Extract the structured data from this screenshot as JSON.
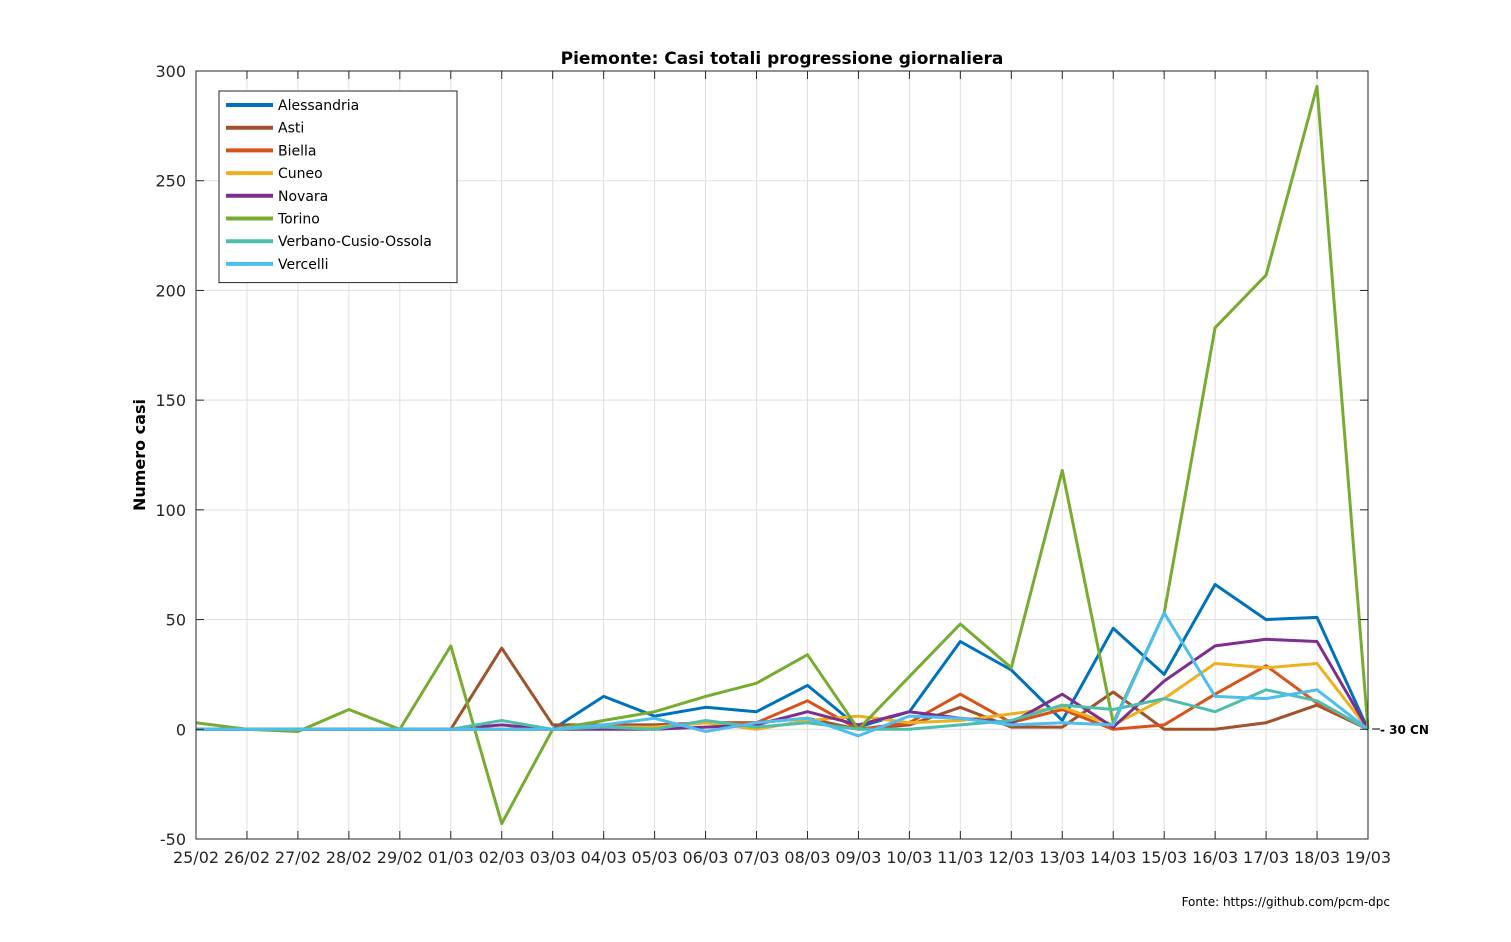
{
  "chart_data": {
    "type": "line",
    "title": "Piemonte: Casi totali progressione giornaliera",
    "xlabel": "",
    "ylabel": "Numero casi",
    "ylim": [
      -50,
      300
    ],
    "yticks": [
      -50,
      0,
      50,
      100,
      150,
      200,
      250,
      300
    ],
    "grid": true,
    "legend_position": "top-left",
    "categories": [
      "25/02",
      "26/02",
      "27/02",
      "28/02",
      "29/02",
      "01/03",
      "02/03",
      "03/03",
      "04/03",
      "05/03",
      "06/03",
      "07/03",
      "08/03",
      "09/03",
      "10/03",
      "11/03",
      "12/03",
      "13/03",
      "14/03",
      "15/03",
      "16/03",
      "17/03",
      "18/03",
      "19/03"
    ],
    "series": [
      {
        "name": "Alessandria",
        "color": "#0072BD",
        "values": [
          0,
          0,
          0,
          0,
          0,
          0,
          0,
          0,
          15,
          6,
          10,
          8,
          20,
          1,
          8,
          40,
          27,
          4,
          46,
          25,
          66,
          50,
          51,
          0
        ]
      },
      {
        "name": "Asti",
        "color": "#A0522D",
        "values": [
          0,
          0,
          0,
          0,
          0,
          0,
          37,
          2,
          2,
          2,
          3,
          3,
          5,
          0,
          2,
          10,
          1,
          1,
          17,
          0,
          0,
          3,
          11,
          0
        ]
      },
      {
        "name": "Biella",
        "color": "#D95319",
        "values": [
          0,
          0,
          0,
          0,
          0,
          0,
          0,
          0,
          1,
          1,
          3,
          3,
          13,
          0,
          3,
          16,
          3,
          9,
          0,
          2,
          16,
          29,
          12,
          0
        ]
      },
      {
        "name": "Cuneo",
        "color": "#EDB120",
        "values": [
          0,
          0,
          0,
          0,
          0,
          0,
          0,
          0,
          1,
          1,
          3,
          0,
          4,
          6,
          3,
          4,
          7,
          10,
          2,
          14,
          30,
          28,
          30,
          0
        ]
      },
      {
        "name": "Novara",
        "color": "#7E2F8E",
        "values": [
          0,
          0,
          0,
          0,
          0,
          0,
          2,
          0,
          0,
          0,
          1,
          2,
          8,
          2,
          8,
          5,
          3,
          16,
          1,
          22,
          38,
          41,
          40,
          0
        ]
      },
      {
        "name": "Torino",
        "color": "#77AC30",
        "values": [
          3,
          0,
          -1,
          9,
          0,
          38,
          -43,
          0,
          4,
          8,
          15,
          21,
          34,
          0,
          24,
          48,
          28,
          118,
          3,
          53,
          183,
          207,
          293,
          0
        ]
      },
      {
        "name": "Verbano-Cusio-Ossola",
        "color": "#4DBEAE",
        "values": [
          0,
          0,
          0,
          0,
          0,
          0,
          4,
          0,
          1,
          0,
          4,
          1,
          3,
          0,
          0,
          2,
          4,
          11,
          9,
          14,
          8,
          18,
          13,
          0
        ]
      },
      {
        "name": "Vercelli",
        "color": "#4DBEEE",
        "values": [
          0,
          0,
          0,
          0,
          0,
          0,
          0,
          0,
          2,
          5,
          -1,
          3,
          5,
          -3,
          6,
          5,
          2,
          3,
          2,
          53,
          15,
          14,
          18,
          0
        ]
      }
    ],
    "end_label": "- 30 CN"
  },
  "source_note": "Fonte: https://github.com/pcm-dpc"
}
